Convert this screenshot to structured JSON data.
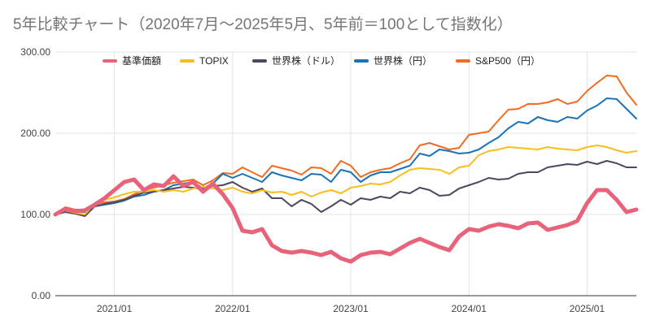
{
  "chart_data": {
    "type": "line",
    "title": "5年比較チャート（2020年7月〜2025年5月、5年前＝100として指数化）",
    "xlabel": "",
    "ylabel": "",
    "ylim": [
      0,
      300
    ],
    "y_ticks": [
      "0.00",
      "100.00",
      "200.00",
      "300.00"
    ],
    "x_ticks": [
      {
        "label": "2021/01",
        "index": 6
      },
      {
        "label": "2022/01",
        "index": 18
      },
      {
        "label": "2023/01",
        "index": 30
      },
      {
        "label": "2024/01",
        "index": 42
      },
      {
        "label": "2025/01",
        "index": 54
      }
    ],
    "x_start": "2020/07",
    "x_end": "2025/05",
    "grid": "vertical-and-horizontal",
    "legend_position": "top",
    "series": [
      {
        "name": "基準価額",
        "color": "#e8637a",
        "width": 5,
        "values": [
          100,
          107,
          104,
          105,
          112,
          120,
          130,
          140,
          143,
          130,
          137,
          135,
          147,
          135,
          140,
          128,
          138,
          125,
          108,
          80,
          78,
          82,
          62,
          55,
          53,
          55,
          53,
          50,
          54,
          46,
          42,
          50,
          53,
          54,
          51,
          58,
          65,
          70,
          65,
          60,
          56,
          73,
          82,
          80,
          85,
          88,
          86,
          83,
          89,
          90,
          81,
          84,
          87,
          92,
          114,
          130,
          130,
          118,
          103,
          106
        ]
      },
      {
        "name": "TOPIX",
        "color": "#f9bd1d",
        "width": 2,
        "values": [
          100,
          105,
          102,
          100,
          113,
          118,
          121,
          125,
          128,
          128,
          130,
          128,
          130,
          128,
          132,
          134,
          132,
          130,
          133,
          128,
          126,
          130,
          127,
          128,
          124,
          128,
          122,
          127,
          130,
          126,
          133,
          135,
          138,
          137,
          140,
          148,
          155,
          157,
          156,
          155,
          150,
          158,
          160,
          173,
          178,
          180,
          183,
          182,
          181,
          180,
          183,
          181,
          180,
          179,
          183,
          185,
          183,
          179,
          176,
          178
        ]
      },
      {
        "name": "世界株（ドル）",
        "color": "#4a4a5e",
        "width": 2,
        "values": [
          100,
          103,
          101,
          98,
          110,
          113,
          115,
          118,
          123,
          127,
          128,
          130,
          132,
          134,
          133,
          131,
          135,
          136,
          140,
          133,
          128,
          132,
          120,
          120,
          110,
          118,
          113,
          103,
          110,
          118,
          112,
          120,
          118,
          122,
          120,
          128,
          126,
          133,
          130,
          123,
          124,
          132,
          136,
          140,
          145,
          143,
          144,
          150,
          152,
          152,
          158,
          160,
          162,
          161,
          165,
          162,
          166,
          163,
          158,
          158
        ]
      },
      {
        "name": "世界株（円）",
        "color": "#1a73b8",
        "width": 2,
        "values": [
          100,
          106,
          103,
          103,
          110,
          112,
          114,
          117,
          122,
          124,
          128,
          130,
          136,
          138,
          140,
          132,
          138,
          150,
          145,
          150,
          145,
          140,
          152,
          148,
          145,
          142,
          150,
          149,
          140,
          155,
          152,
          140,
          148,
          152,
          152,
          156,
          160,
          175,
          172,
          180,
          178,
          175,
          176,
          180,
          188,
          195,
          206,
          214,
          212,
          220,
          216,
          214,
          220,
          218,
          228,
          234,
          243,
          242,
          230,
          218
        ]
      },
      {
        "name": "S&P500（円）",
        "color": "#f26b21",
        "width": 2,
        "values": [
          100,
          109,
          106,
          106,
          113,
          115,
          116,
          119,
          125,
          130,
          133,
          136,
          139,
          141,
          143,
          136,
          142,
          151,
          150,
          158,
          152,
          146,
          160,
          157,
          154,
          149,
          158,
          157,
          150,
          166,
          160,
          146,
          152,
          155,
          157,
          163,
          168,
          185,
          188,
          184,
          180,
          182,
          198,
          200,
          202,
          216,
          229,
          230,
          236,
          236,
          238,
          242,
          236,
          239,
          252,
          262,
          271,
          270,
          250,
          235
        ]
      }
    ]
  }
}
